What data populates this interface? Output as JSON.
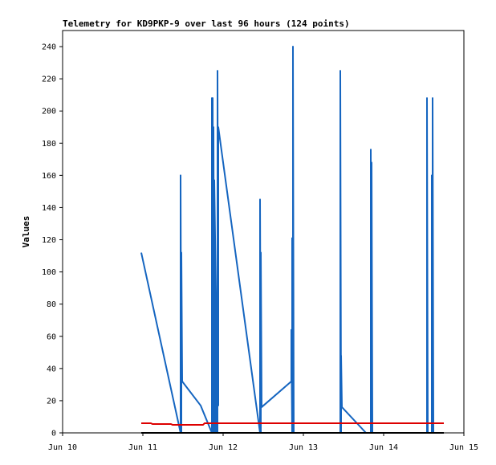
{
  "chart_data": {
    "type": "line",
    "title": "Telemetry for KD9PKP-9 over last 96 hours (124 points)",
    "xlabel": "",
    "ylabel": "Values",
    "x_unit": "days (Jun 10 = 10)",
    "xlim": [
      10,
      15
    ],
    "ylim": [
      0,
      250
    ],
    "x_tick_values": [
      10,
      11,
      12,
      13,
      14,
      15
    ],
    "x_tick_labels": [
      "Jun 10",
      "Jun 11",
      "Jun 12",
      "Jun 13",
      "Jun 14",
      "Jun 15"
    ],
    "y_ticks": [
      0,
      20,
      40,
      60,
      80,
      100,
      120,
      140,
      160,
      180,
      200,
      220,
      240
    ],
    "grid": false,
    "legend": "none",
    "series": [
      {
        "color": "#1565c0",
        "points": [
          [
            10.98,
            112
          ],
          [
            11.47,
            0
          ],
          [
            11.47,
            160
          ],
          [
            11.48,
            0
          ],
          [
            11.48,
            112
          ],
          [
            11.49,
            32
          ],
          [
            11.72,
            17
          ],
          [
            11.86,
            0
          ],
          [
            11.86,
            208
          ],
          [
            11.87,
            0
          ],
          [
            11.87,
            208
          ],
          [
            11.88,
            0
          ],
          [
            11.88,
            190
          ],
          [
            11.89,
            0
          ],
          [
            11.89,
            157
          ],
          [
            11.9,
            122
          ],
          [
            11.91,
            87
          ],
          [
            11.91,
            0
          ],
          [
            11.92,
            56
          ],
          [
            11.93,
            0
          ],
          [
            11.93,
            225
          ],
          [
            11.94,
            17
          ],
          [
            11.94,
            190
          ],
          [
            12.46,
            0
          ],
          [
            12.46,
            145
          ],
          [
            12.47,
            0
          ],
          [
            12.47,
            112
          ],
          [
            12.48,
            16
          ],
          [
            12.85,
            32
          ],
          [
            12.85,
            64
          ],
          [
            12.86,
            0
          ],
          [
            12.86,
            121
          ],
          [
            12.87,
            0
          ],
          [
            12.87,
            240
          ],
          [
            12.88,
            0
          ],
          [
            13.46,
            0
          ],
          [
            13.46,
            225
          ],
          [
            13.47,
            0
          ],
          [
            13.47,
            48
          ],
          [
            13.48,
            16
          ],
          [
            13.78,
            0
          ],
          [
            13.84,
            0
          ],
          [
            13.84,
            176
          ],
          [
            13.85,
            0
          ],
          [
            13.85,
            168
          ],
          [
            13.86,
            0
          ],
          [
            14.54,
            0
          ],
          [
            14.54,
            208
          ],
          [
            14.55,
            0
          ],
          [
            14.6,
            0
          ],
          [
            14.6,
            160
          ],
          [
            14.61,
            0
          ],
          [
            14.61,
            208
          ],
          [
            14.62,
            0
          ]
        ]
      },
      {
        "color": "#dd0000",
        "points": [
          [
            10.98,
            6
          ],
          [
            11.1,
            6
          ],
          [
            11.12,
            5.5
          ],
          [
            11.35,
            5.5
          ],
          [
            11.37,
            5
          ],
          [
            11.75,
            5
          ],
          [
            11.77,
            6
          ],
          [
            14.75,
            6
          ]
        ]
      },
      {
        "color": "#000000",
        "points": [
          [
            10.98,
            0
          ],
          [
            14.75,
            0
          ]
        ]
      }
    ]
  }
}
